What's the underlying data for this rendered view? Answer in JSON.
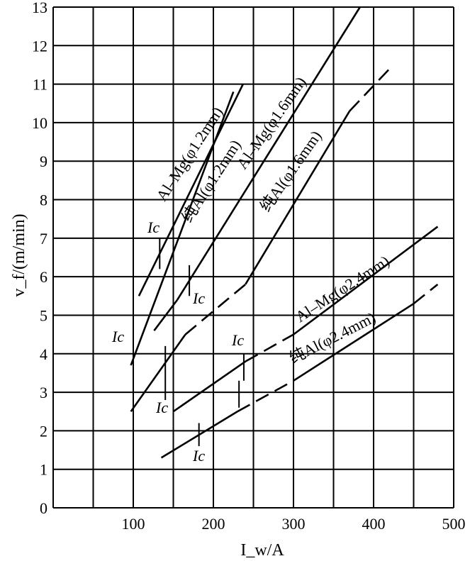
{
  "chart_data": {
    "type": "line",
    "xlabel": "I_w/A",
    "ylabel": "v_f/(m/min)",
    "xlim": [
      0,
      500
    ],
    "ylim": [
      0,
      13
    ],
    "grid": true,
    "x_ticks": [
      "100",
      "200",
      "300",
      "400",
      "500"
    ],
    "y_ticks": [
      "0",
      "1",
      "2",
      "3",
      "4",
      "5",
      "6",
      "7",
      "8",
      "9",
      "10",
      "11",
      "12",
      "13"
    ],
    "ic_label": "Ic",
    "series": [
      {
        "name": "Al–Mg(φ1.2mm)",
        "segments": [
          {
            "x": [
              107,
              237
            ],
            "y": [
              5.5,
              11.0
            ],
            "style": "solid"
          }
        ],
        "ic": {
          "x": 133,
          "y": [
            6.2,
            7.0
          ]
        }
      },
      {
        "name": "纯Al(φ1.2mm)",
        "segments": [
          {
            "x": [
              97,
              225
            ],
            "y": [
              3.7,
              10.8
            ],
            "style": "solid"
          }
        ],
        "ic": {
          "x": 140,
          "y": [
            2.8,
            4.2
          ]
        }
      },
      {
        "name": "Al–Mg(φ1.6mm)",
        "segments": [
          {
            "x": [
              126,
              155
            ],
            "y": [
              4.6,
              5.4
            ],
            "style": "solid"
          },
          {
            "x": [
              155,
              383
            ],
            "y": [
              5.4,
              13.0
            ],
            "style": "solid"
          }
        ],
        "ic": {
          "x": 170,
          "y": [
            5.5,
            6.3
          ]
        }
      },
      {
        "name": "纯Al(φ1.6mm)",
        "segments": [
          {
            "x": [
              97,
              165
            ],
            "y": [
              2.5,
              4.5
            ],
            "style": "solid"
          },
          {
            "x": [
              165,
              240
            ],
            "y": [
              4.5,
              5.8
            ],
            "style": "dashed"
          },
          {
            "x": [
              240,
              370
            ],
            "y": [
              5.8,
              10.3
            ],
            "style": "solid"
          },
          {
            "x": [
              370,
              420
            ],
            "y": [
              10.3,
              11.4
            ],
            "style": "dashed"
          }
        ],
        "ic": {
          "x": 232,
          "y": [
            2.6,
            3.3
          ]
        }
      },
      {
        "name": "Al–Mg(φ2.4mm)",
        "segments": [
          {
            "x": [
              150,
              240
            ],
            "y": [
              2.5,
              3.8
            ],
            "style": "solid"
          },
          {
            "x": [
              240,
              300
            ],
            "y": [
              3.8,
              4.5
            ],
            "style": "dashed"
          },
          {
            "x": [
              300,
              480
            ],
            "y": [
              4.5,
              7.3
            ],
            "style": "solid"
          }
        ],
        "ic": {
          "x": 238,
          "y": [
            3.3,
            4.0
          ]
        }
      },
      {
        "name": "纯Al(φ2.4mm)",
        "segments": [
          {
            "x": [
              135,
              230
            ],
            "y": [
              1.3,
              2.5
            ],
            "style": "solid"
          },
          {
            "x": [
              230,
              300
            ],
            "y": [
              2.5,
              3.3
            ],
            "style": "dashed"
          },
          {
            "x": [
              300,
              450
            ],
            "y": [
              3.3,
              5.3
            ],
            "style": "solid"
          },
          {
            "x": [
              450,
              480
            ],
            "y": [
              5.3,
              5.8
            ],
            "style": "dashed"
          }
        ],
        "ic": {
          "x": 182,
          "y": [
            1.6,
            2.2
          ]
        }
      }
    ]
  }
}
